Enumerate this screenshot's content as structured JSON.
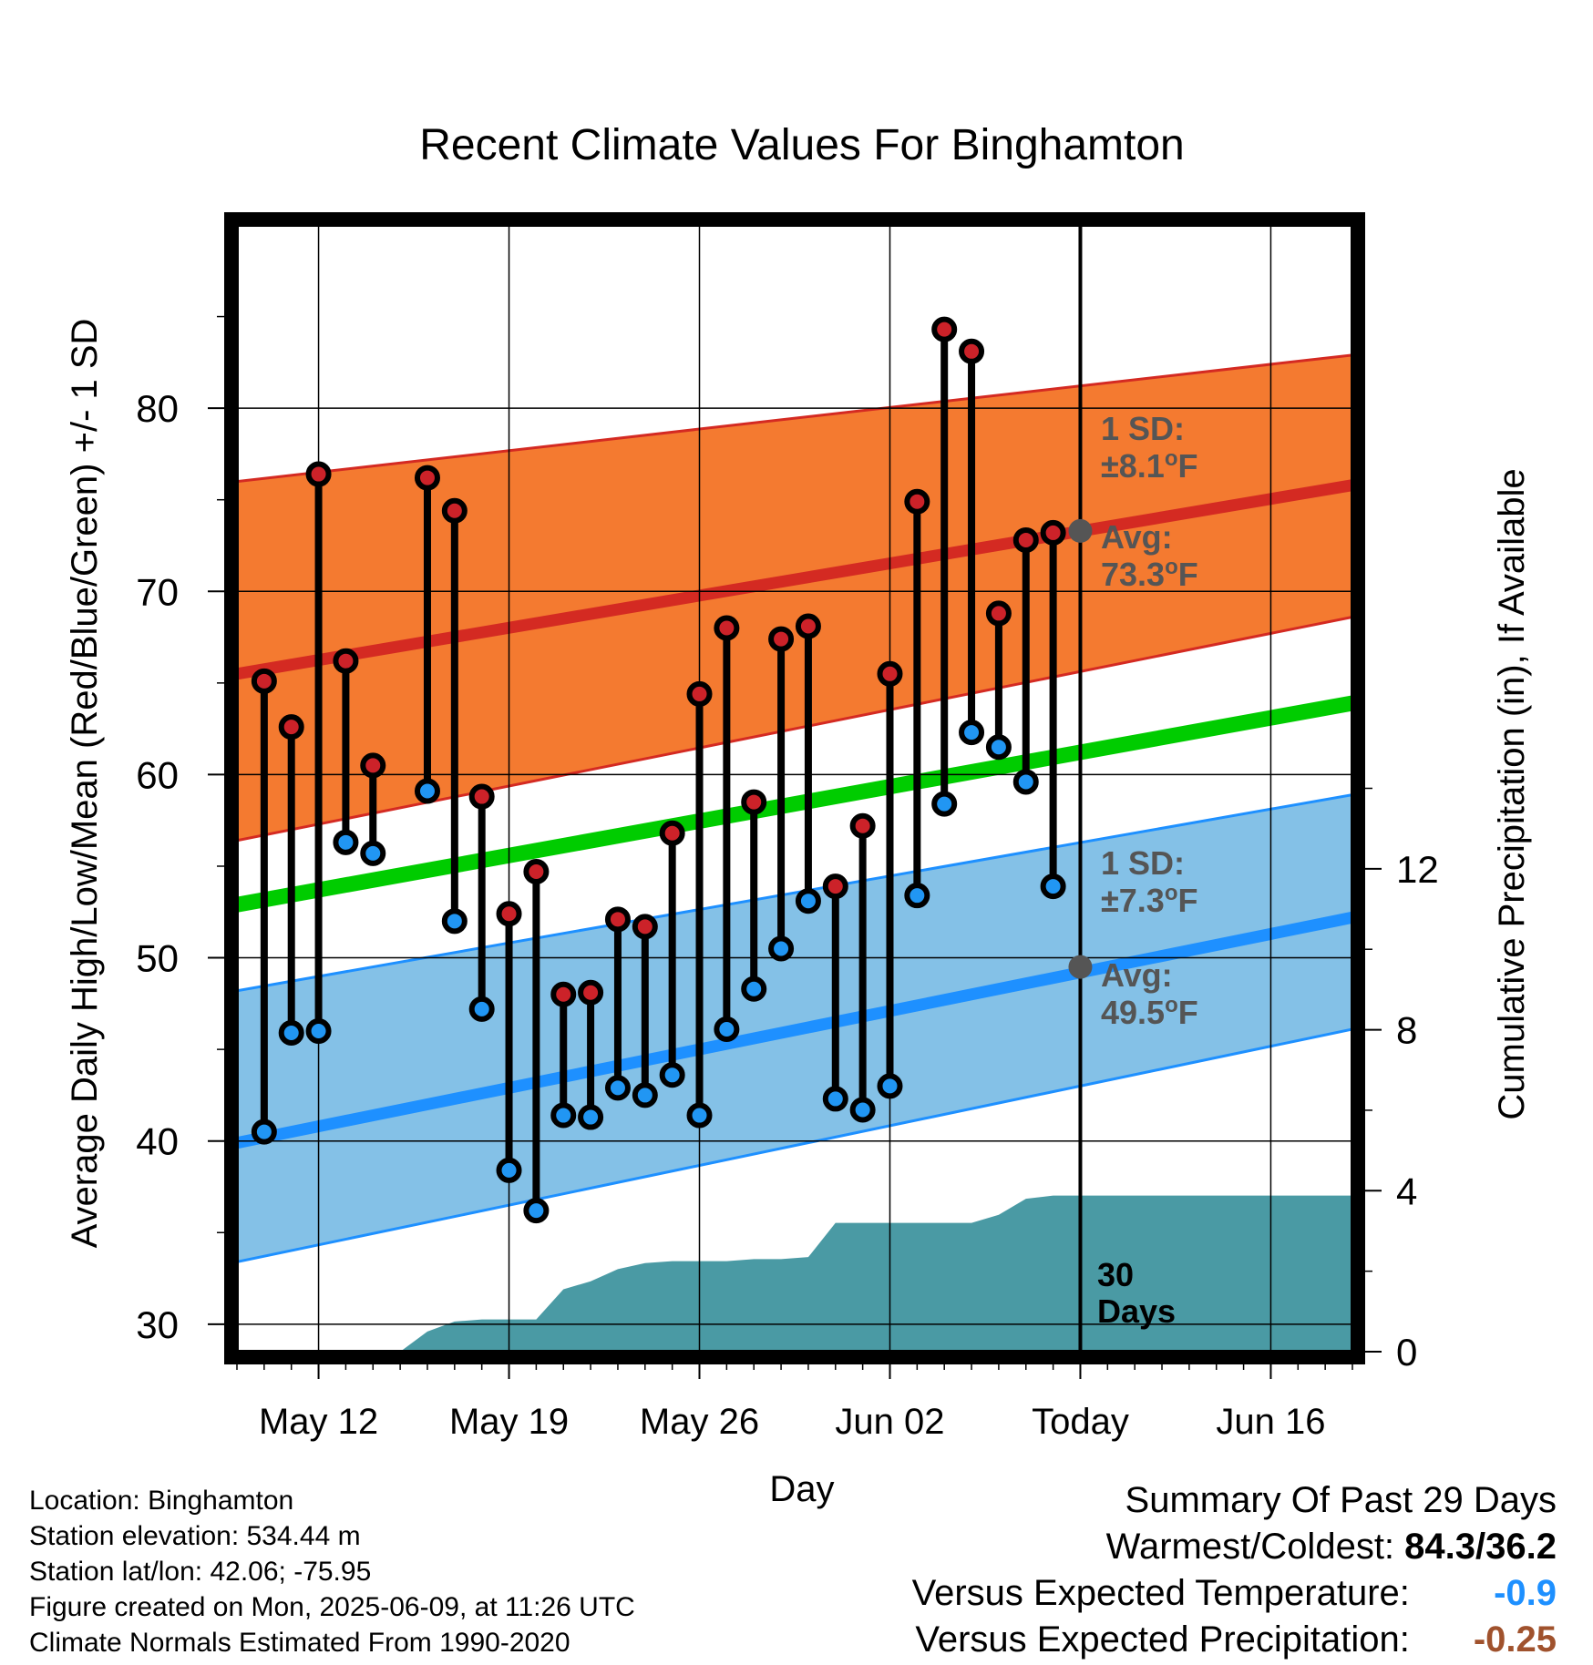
{
  "chart_data": {
    "type": "line",
    "title": "Recent Climate Values For Binghamton",
    "xlabel": "Day",
    "ylabel": "Average Daily High/Low/Mean (Red/Blue/Green) +/- 1 SD",
    "y2label": "Cumulative Precipitation (in), If Available",
    "x_range": [
      "2025-05-09",
      "2025-06-19"
    ],
    "ylim": [
      28.5,
      90
    ],
    "y2lim": [
      0,
      28
    ],
    "y_ticks": [
      "30",
      "40",
      "50",
      "60",
      "70",
      "80"
    ],
    "y2_ticks": [
      "0",
      "4",
      "8",
      "12"
    ],
    "x_ticks": [
      {
        "date": "2025-05-12",
        "label": "May 12"
      },
      {
        "date": "2025-05-19",
        "label": "May 19"
      },
      {
        "date": "2025-05-26",
        "label": "May 26"
      },
      {
        "date": "2025-06-02",
        "label": "Jun 02"
      },
      {
        "date": "2025-06-09",
        "label": "Today"
      },
      {
        "date": "2025-06-16",
        "label": "Jun 16"
      }
    ],
    "grid": true,
    "today": "2025-06-09",
    "days_label": "30\nDays",
    "colors": {
      "high_band": "#f47a30",
      "high_line": "#d42a22",
      "low_band": "#84c1e7",
      "low_line": "#1e90ff",
      "mean_line": "#00cc00",
      "precip": "#4a9aa4",
      "high_marker": "#cc2229",
      "low_marker": "#2196f3",
      "annotation": "#555555"
    },
    "normals": {
      "dates": [
        "2025-05-09",
        "2025-06-19"
      ],
      "high_mean": [
        65.5,
        75.8
      ],
      "high_sd_upper": [
        76.0,
        82.9
      ],
      "high_sd_lower": [
        56.4,
        68.6
      ],
      "low_mean": [
        39.9,
        52.2
      ],
      "low_sd_upper": [
        48.2,
        58.9
      ],
      "low_sd_lower": [
        33.4,
        46.1
      ],
      "mean": [
        52.9,
        63.9
      ]
    },
    "observed": [
      {
        "date": "2025-05-10",
        "high": 65.1,
        "low": 40.5
      },
      {
        "date": "2025-05-11",
        "high": 62.6,
        "low": 45.9
      },
      {
        "date": "2025-05-12",
        "high": 76.4,
        "low": 46.0
      },
      {
        "date": "2025-05-13",
        "high": 66.2,
        "low": 56.3
      },
      {
        "date": "2025-05-14",
        "high": 60.5,
        "low": 55.7
      },
      {
        "date": "2025-05-16",
        "high": 76.2,
        "low": 59.1
      },
      {
        "date": "2025-05-17",
        "high": 74.4,
        "low": 52.0
      },
      {
        "date": "2025-05-18",
        "high": 58.8,
        "low": 47.2
      },
      {
        "date": "2025-05-19",
        "high": 52.4,
        "low": 38.4
      },
      {
        "date": "2025-05-20",
        "high": 54.7,
        "low": 36.2
      },
      {
        "date": "2025-05-21",
        "high": 48.0,
        "low": 41.4
      },
      {
        "date": "2025-05-22",
        "high": 48.1,
        "low": 41.3
      },
      {
        "date": "2025-05-23",
        "high": 52.1,
        "low": 42.9
      },
      {
        "date": "2025-05-24",
        "high": 51.7,
        "low": 42.5
      },
      {
        "date": "2025-05-25",
        "high": 56.8,
        "low": 43.6
      },
      {
        "date": "2025-05-26",
        "high": 64.4,
        "low": 41.4
      },
      {
        "date": "2025-05-27",
        "high": 68.0,
        "low": 46.1
      },
      {
        "date": "2025-05-28",
        "high": 58.5,
        "low": 48.3
      },
      {
        "date": "2025-05-29",
        "high": 67.4,
        "low": 50.5
      },
      {
        "date": "2025-05-30",
        "high": 68.1,
        "low": 53.1
      },
      {
        "date": "2025-05-31",
        "high": 53.9,
        "low": 42.3
      },
      {
        "date": "2025-06-01",
        "high": 57.2,
        "low": 41.7
      },
      {
        "date": "2025-06-02",
        "high": 65.5,
        "low": 43.0
      },
      {
        "date": "2025-06-03",
        "high": 74.9,
        "low": 53.4
      },
      {
        "date": "2025-06-04",
        "high": 84.3,
        "low": 58.4
      },
      {
        "date": "2025-06-05",
        "high": 83.1,
        "low": 62.3
      },
      {
        "date": "2025-06-06",
        "high": 68.8,
        "low": 61.5
      },
      {
        "date": "2025-06-07",
        "high": 72.8,
        "low": 59.6
      },
      {
        "date": "2025-06-08",
        "high": 73.2,
        "low": 53.9
      }
    ],
    "precip": {
      "dates": [
        "2025-05-13",
        "2025-05-14",
        "2025-05-15",
        "2025-05-16",
        "2025-05-17",
        "2025-05-18",
        "2025-05-19",
        "2025-05-20",
        "2025-05-21",
        "2025-05-22",
        "2025-05-23",
        "2025-05-24",
        "2025-05-25",
        "2025-05-26",
        "2025-05-27",
        "2025-05-28",
        "2025-05-29",
        "2025-05-30",
        "2025-05-31",
        "2025-06-01",
        "2025-06-02",
        "2025-06-03",
        "2025-06-04",
        "2025-06-05",
        "2025-06-06",
        "2025-06-07",
        "2025-06-08",
        "2025-06-09",
        "2025-06-19"
      ],
      "values": [
        0.0,
        0.0,
        0.0,
        0.5,
        0.75,
        0.8,
        0.8,
        0.8,
        1.55,
        1.75,
        2.05,
        2.2,
        2.25,
        2.25,
        2.25,
        2.3,
        2.3,
        2.35,
        3.2,
        3.2,
        3.2,
        3.2,
        3.2,
        3.2,
        3.4,
        3.8,
        3.88,
        3.88,
        3.88
      ]
    },
    "annotations": {
      "high_sd_label": "1 SD:",
      "high_sd_value": "±8.1",
      "high_avg_label": "Avg:",
      "high_avg_value": "73.3",
      "low_sd_label": "1 SD:",
      "low_sd_value": "±7.3",
      "low_avg_label": "Avg:",
      "low_avg_value": "49.5",
      "degree_unit": "o",
      "f_unit": "F",
      "high_avg_temp": 73.3,
      "low_avg_temp": 49.5
    }
  },
  "info": {
    "location": "Location: Binghamton",
    "elevation": "Station elevation: 534.44 m",
    "latlon": "Station lat/lon: 42.06; -75.95",
    "created": "Figure created on Mon, 2025-06-09, at 11:26 UTC",
    "normals": "Climate Normals Estimated From 1990-2020"
  },
  "summary": {
    "title": "Summary Of Past 29 Days",
    "warm_cold_label": "Warmest/Coldest:",
    "warm_cold_value": "84.3/36.2",
    "temp_label": "Versus Expected Temperature:",
    "temp_value": "-0.9",
    "temp_color": "#1e90ff",
    "precip_label": "Versus Expected Precipitation:",
    "precip_value": "-0.25",
    "precip_color": "#a0522d"
  }
}
